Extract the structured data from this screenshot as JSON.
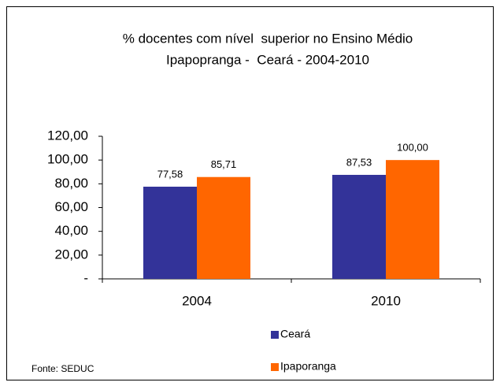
{
  "chart_data": {
    "type": "bar",
    "title": [
      "% docentes com nível  superior no Ensino Médio",
      "Ipapopranga -  Ceará - 2004-2010"
    ],
    "categories": [
      "2004",
      "2010"
    ],
    "series": [
      {
        "name": "Ceará",
        "color": "#333399",
        "values": [
          77.58,
          87.53
        ],
        "value_labels": [
          "77,58",
          "87,53"
        ]
      },
      {
        "name": "Ipaporanga",
        "color": "#ff6600",
        "values": [
          85.71,
          100.0
        ],
        "value_labels": [
          "85,71",
          "100,00"
        ]
      }
    ],
    "ylim": [
      0,
      120
    ],
    "yticks": [
      {
        "value": 0,
        "label": "-"
      },
      {
        "value": 20,
        "label": "20,00"
      },
      {
        "value": 40,
        "label": "40,00"
      },
      {
        "value": 60,
        "label": "60,00"
      },
      {
        "value": 80,
        "label": "80,00"
      },
      {
        "value": 100,
        "label": "100,00"
      },
      {
        "value": 120,
        "label": "120,00"
      }
    ],
    "source": "Fonte: SEDUC"
  }
}
